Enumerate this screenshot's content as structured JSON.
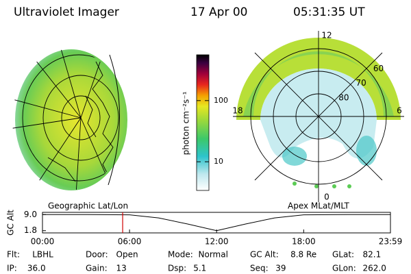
{
  "header": {
    "instrument": "Ultraviolet Imager",
    "date": "17 Apr 00",
    "time": "05:31:35 UT"
  },
  "colorbar": {
    "label": "photon cm⁻²s⁻¹",
    "log": true,
    "lim": [
      3.4,
      560
    ],
    "ticks": [
      10,
      100
    ]
  },
  "polar": {
    "mlt_ticks": [
      12,
      6,
      18,
      0
    ],
    "lat_ticks": [
      80,
      70,
      60
    ]
  },
  "timeline": {
    "left_title": "Geographic Lat/Lon",
    "right_title": "Apex MLat/MLT",
    "ylabel": "GC Alt",
    "yticks": [
      {
        "value": 9,
        "label": "9.0"
      },
      {
        "value": 1.8,
        "label": "1.8"
      }
    ],
    "ylim": [
      0.8,
      10
    ],
    "xlim": [
      0,
      23.98
    ],
    "xticks": [
      {
        "value": 0,
        "label": "00:00"
      },
      {
        "value": 6,
        "label": "06:00"
      },
      {
        "value": 12,
        "label": "12:00"
      },
      {
        "value": 18,
        "label": "18:00"
      },
      {
        "value": 23.98,
        "label": "23:59"
      }
    ],
    "x": [
      0,
      3,
      6,
      8,
      10,
      12,
      14,
      16,
      18,
      21,
      23.98
    ],
    "y": [
      9.0,
      9.0,
      8.9,
      7.5,
      4.8,
      1.8,
      4.8,
      7.5,
      8.9,
      9.0,
      9.0
    ],
    "current_time": 5.526,
    "marker_color": "#d00000"
  },
  "footer": {
    "rows": [
      [
        {
          "label": "Flt:",
          "value": "LBHL"
        },
        {
          "label": "Door:",
          "value": "Open"
        },
        {
          "label": "Mode:",
          "value": "Normal"
        },
        {
          "label": "GC Alt:",
          "value": "8.8 Re"
        },
        {
          "label": "GLat:",
          "value": "82.1"
        }
      ],
      [
        {
          "label": "IP:",
          "value": "36.0"
        },
        {
          "label": "Gain:",
          "value": "13"
        },
        {
          "label": "Dsp:",
          "value": "5.1"
        },
        {
          "label": "Seq:",
          "value": "39"
        },
        {
          "label": "GLon:",
          "value": "262.0"
        }
      ]
    ]
  }
}
